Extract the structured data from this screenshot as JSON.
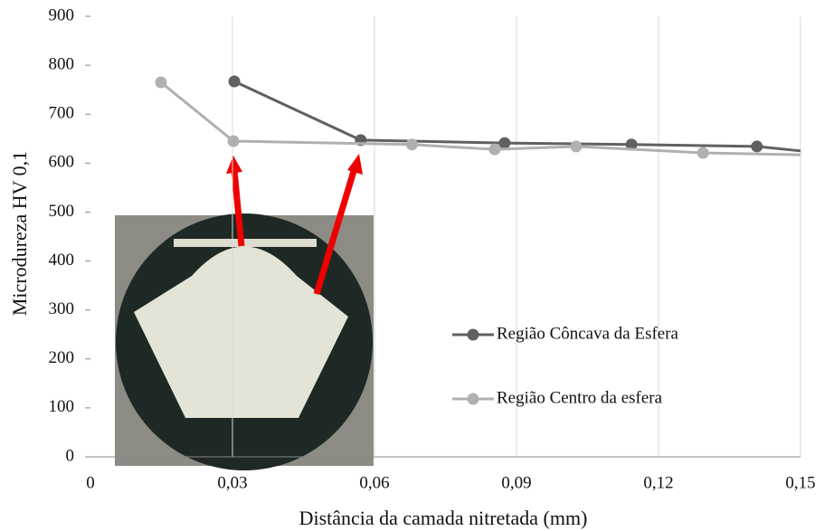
{
  "chart_data": {
    "type": "line",
    "x_label": "Distância da camada nitretada (mm)",
    "y_label": "Microdureza HV 0,1",
    "xlim": [
      0,
      0.15
    ],
    "xticks": [
      0,
      {
        "value": 0.03,
        "label": "0,03"
      },
      {
        "value": 0.06,
        "label": "0,06"
      },
      {
        "value": 0.09,
        "label": "0,09"
      },
      {
        "value": 0.12,
        "label": "0,12"
      },
      {
        "value": 0.15,
        "label": "0,15"
      }
    ],
    "ylim": [
      0,
      900
    ],
    "yticks": [
      0,
      100,
      200,
      300,
      400,
      500,
      600,
      700,
      800,
      900
    ],
    "grid": "x",
    "series": [
      {
        "name": "Região Côncava  da Esfera",
        "color": "#606060",
        "x": [
          0.0304,
          0.0571,
          0.0875,
          0.1143,
          0.1408,
          0.15
        ],
        "values": [
          767,
          647,
          641,
          638,
          634,
          625
        ]
      },
      {
        "name": "Região Centro da esfera",
        "color": "#b0b0b0",
        "x": [
          0.0149,
          0.0302,
          0.0679,
          0.0854,
          0.1026,
          0.1294,
          0.15
        ],
        "values": [
          765,
          645,
          638,
          628,
          634,
          621,
          617
        ]
      }
    ]
  }
}
